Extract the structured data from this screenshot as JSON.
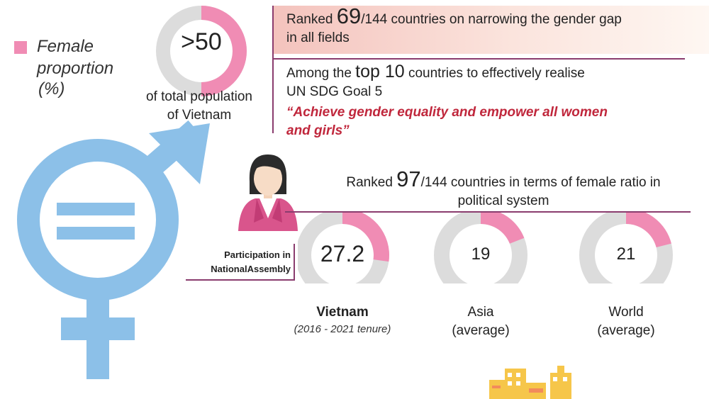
{
  "legend": {
    "label_line1": "Female",
    "label_line2": "proportion",
    "unit": "(%)",
    "color": "#f08cb4"
  },
  "population": {
    "value_text": ">50",
    "share": 50,
    "caption_line1": "of total population",
    "caption_line2": "of Vietnam"
  },
  "gender_gap": {
    "prefix": "Ranked ",
    "rank": "69",
    "suffix": "/144 countries on narrowing the gender gap",
    "line2": "in all fields"
  },
  "sdg": {
    "prefix": "Among the ",
    "highlight": "top 10",
    "suffix": " countries to effectively realise",
    "line2": "UN SDG Goal 5",
    "quote_line1": "“Achieve gender equality and empower all women",
    "quote_line2": "and girls”"
  },
  "political": {
    "prefix": "Ranked ",
    "rank": "97",
    "suffix": "/144 countries in terms of female ratio in",
    "line2": "political system"
  },
  "participation_label_line1": "Participation in",
  "participation_label_line2": "NationalAssembly",
  "donuts": [
    {
      "value": 27.2,
      "value_text": "27.2",
      "label": "Vietnam",
      "sublabel": "(2016 - 2021 tenure)"
    },
    {
      "value": 19,
      "value_text": "19",
      "label": "Asia",
      "sublabel": "(average)"
    },
    {
      "value": 21,
      "value_text": "21",
      "label": "World",
      "sublabel": "(average)"
    }
  ],
  "colors": {
    "pink": "#f08cb4",
    "grey": "#dcdcdc",
    "accent_line": "#8a3c6e",
    "symbol_blue": "#8cc0e8",
    "quote_red": "#c0273c"
  }
}
